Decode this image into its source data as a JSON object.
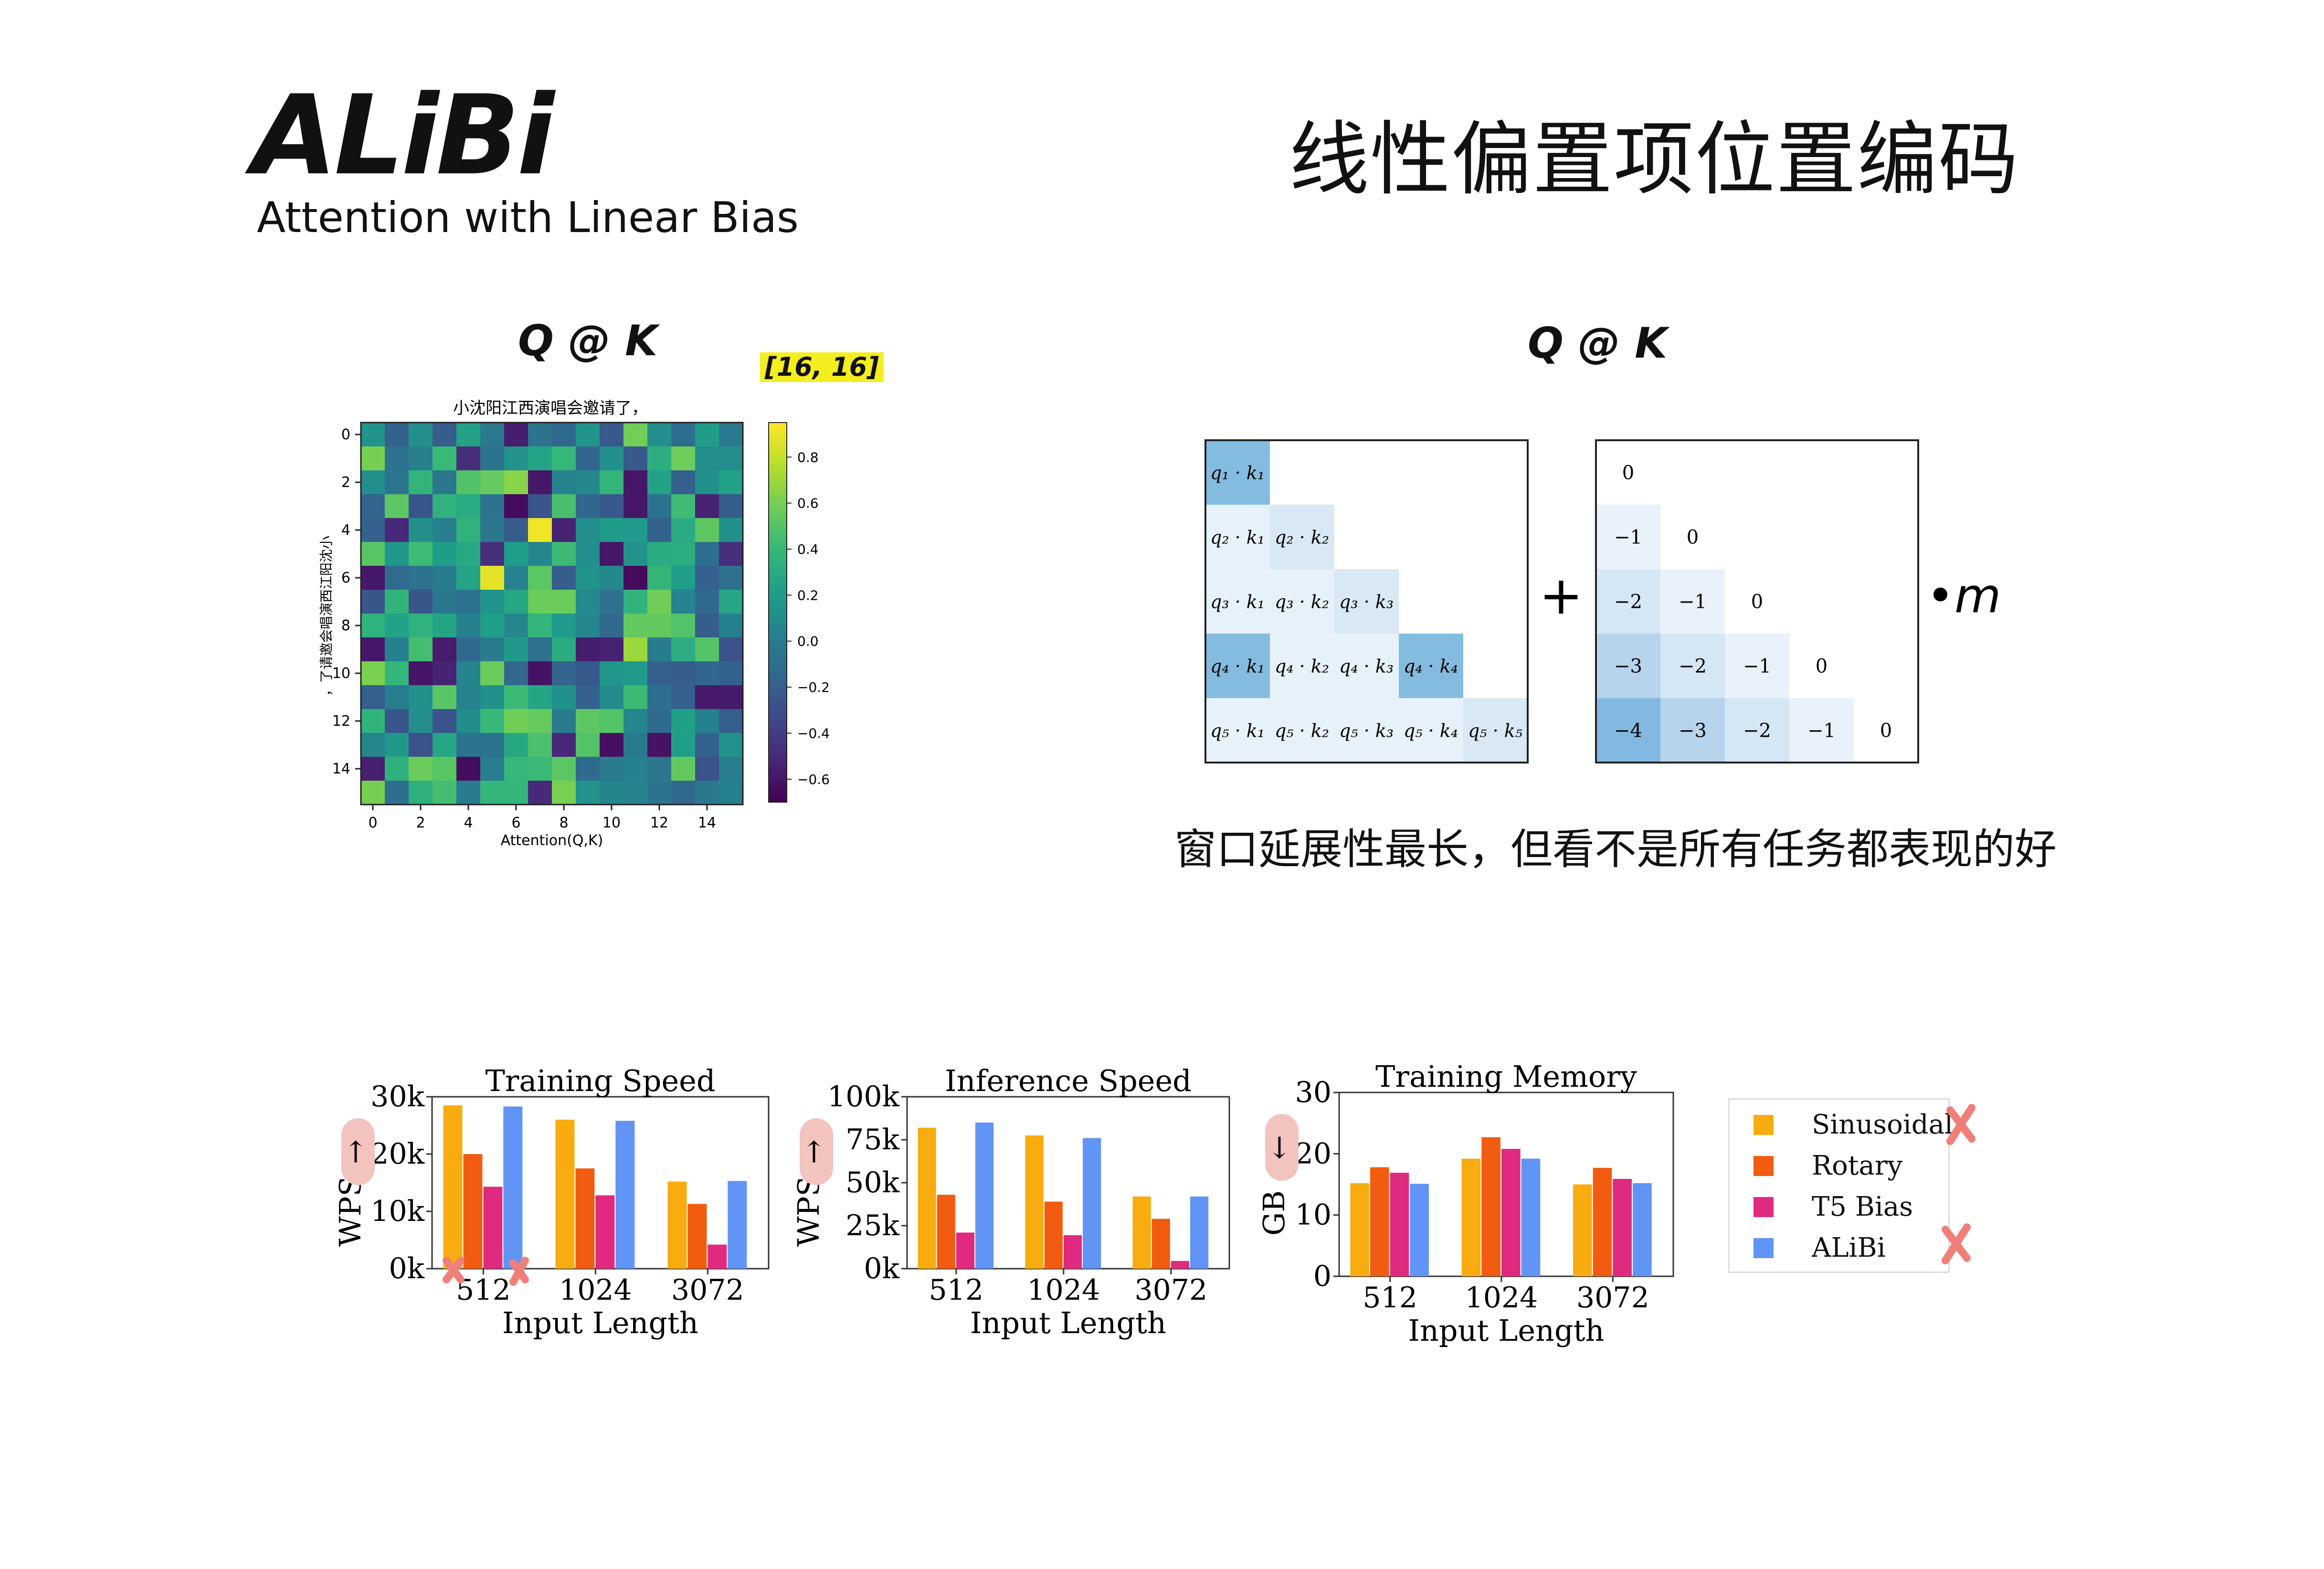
{
  "header": {
    "title": "ALiBi",
    "subtitle": "Attention with Linear Bias",
    "title_cn": "线性偏置项位置编码"
  },
  "left_panel": {
    "label": "Q @ K",
    "shape_badge": "[16, 16]",
    "heatmap": {
      "title": "小沈阳江西演唱会邀请了，",
      "xlabel": "Attention(Q,K)",
      "ylabel": "，了请邀会唱演西江阳沈小",
      "ticks": [
        "0",
        "2",
        "4",
        "6",
        "8",
        "10",
        "12",
        "14"
      ],
      "colorbar_ticks": [
        "0.8",
        "0.6",
        "0.4",
        "0.2",
        "0.0",
        "−0.2",
        "−0.4",
        "−0.6"
      ],
      "vmin": -0.7,
      "vmax": 0.95
    }
  },
  "right_panel": {
    "label": "Q @ K",
    "plus": "+",
    "times_m": "•m",
    "qk_cells": [
      [
        "q₁ · k₁"
      ],
      [
        "q₂ · k₁",
        "q₂ · k₂"
      ],
      [
        "q₃ · k₁",
        "q₃ · k₂",
        "q₃ · k₃"
      ],
      [
        "q₄ · k₁",
        "q₄ · k₂",
        "q₄ · k₃",
        "q₄ · k₄"
      ],
      [
        "q₅ · k₁",
        "q₅ · k₂",
        "q₅ · k₃",
        "q₅ · k₄",
        "q₅ · k₅"
      ]
    ],
    "bias_cells": [
      [
        "0"
      ],
      [
        "−1",
        "0"
      ],
      [
        "−2",
        "−1",
        "0"
      ],
      [
        "−3",
        "−2",
        "−1",
        "0"
      ],
      [
        "−4",
        "−3",
        "−2",
        "−1",
        "0"
      ]
    ],
    "caption": "窗口延展性最长，但看不是所有任务都表现的好"
  },
  "legend": [
    {
      "name": "Sinusoidal",
      "color": "#f8ac0f",
      "crossed": true
    },
    {
      "name": "Rotary",
      "color": "#f25c11",
      "crossed": false
    },
    {
      "name": "T5 Bias",
      "color": "#df2a7f",
      "crossed": false
    },
    {
      "name": "ALiBi",
      "color": "#6094f5",
      "crossed": true
    }
  ],
  "chart_data": [
    {
      "type": "bar",
      "title": "Training Speed",
      "xlabel": "Input Length",
      "ylabel": "WPS",
      "arrow": "↑",
      "categories": [
        "512",
        "1024",
        "3072"
      ],
      "ylim": [
        0,
        30000
      ],
      "yticks": [
        "0k",
        "10k",
        "20k",
        "30k"
      ],
      "series": [
        {
          "name": "Sinusoidal",
          "values": [
            28500,
            26000,
            15200
          ]
        },
        {
          "name": "Rotary",
          "values": [
            20000,
            17500,
            11300
          ]
        },
        {
          "name": "T5 Bias",
          "values": [
            14300,
            12800,
            4200
          ]
        },
        {
          "name": "ALiBi",
          "values": [
            28300,
            25800,
            15300
          ]
        }
      ]
    },
    {
      "type": "bar",
      "title": "Inference Speed",
      "xlabel": "Input Length",
      "ylabel": "WPS",
      "arrow": "↑",
      "categories": [
        "512",
        "1024",
        "3072"
      ],
      "ylim": [
        0,
        100000
      ],
      "yticks": [
        "0k",
        "25k",
        "50k",
        "75k",
        "100k"
      ],
      "series": [
        {
          "name": "Sinusoidal",
          "values": [
            82000,
            77500,
            42000
          ]
        },
        {
          "name": "Rotary",
          "values": [
            43000,
            39000,
            29000
          ]
        },
        {
          "name": "T5 Bias",
          "values": [
            21000,
            19500,
            4500
          ]
        },
        {
          "name": "ALiBi",
          "values": [
            85000,
            76000,
            42000
          ]
        }
      ]
    },
    {
      "type": "bar",
      "title": "Training Memory",
      "xlabel": "Input Length",
      "ylabel": "GB",
      "arrow": "↓",
      "categories": [
        "512",
        "1024",
        "3072"
      ],
      "ylim": [
        0,
        30
      ],
      "yticks": [
        "0",
        "10",
        "20",
        "30"
      ],
      "series": [
        {
          "name": "Sinusoidal",
          "values": [
            15.2,
            19.2,
            15.0
          ]
        },
        {
          "name": "Rotary",
          "values": [
            17.8,
            22.7,
            17.7
          ]
        },
        {
          "name": "T5 Bias",
          "values": [
            16.9,
            20.8,
            15.9
          ]
        },
        {
          "name": "ALiBi",
          "values": [
            15.1,
            19.2,
            15.2
          ]
        }
      ]
    }
  ]
}
